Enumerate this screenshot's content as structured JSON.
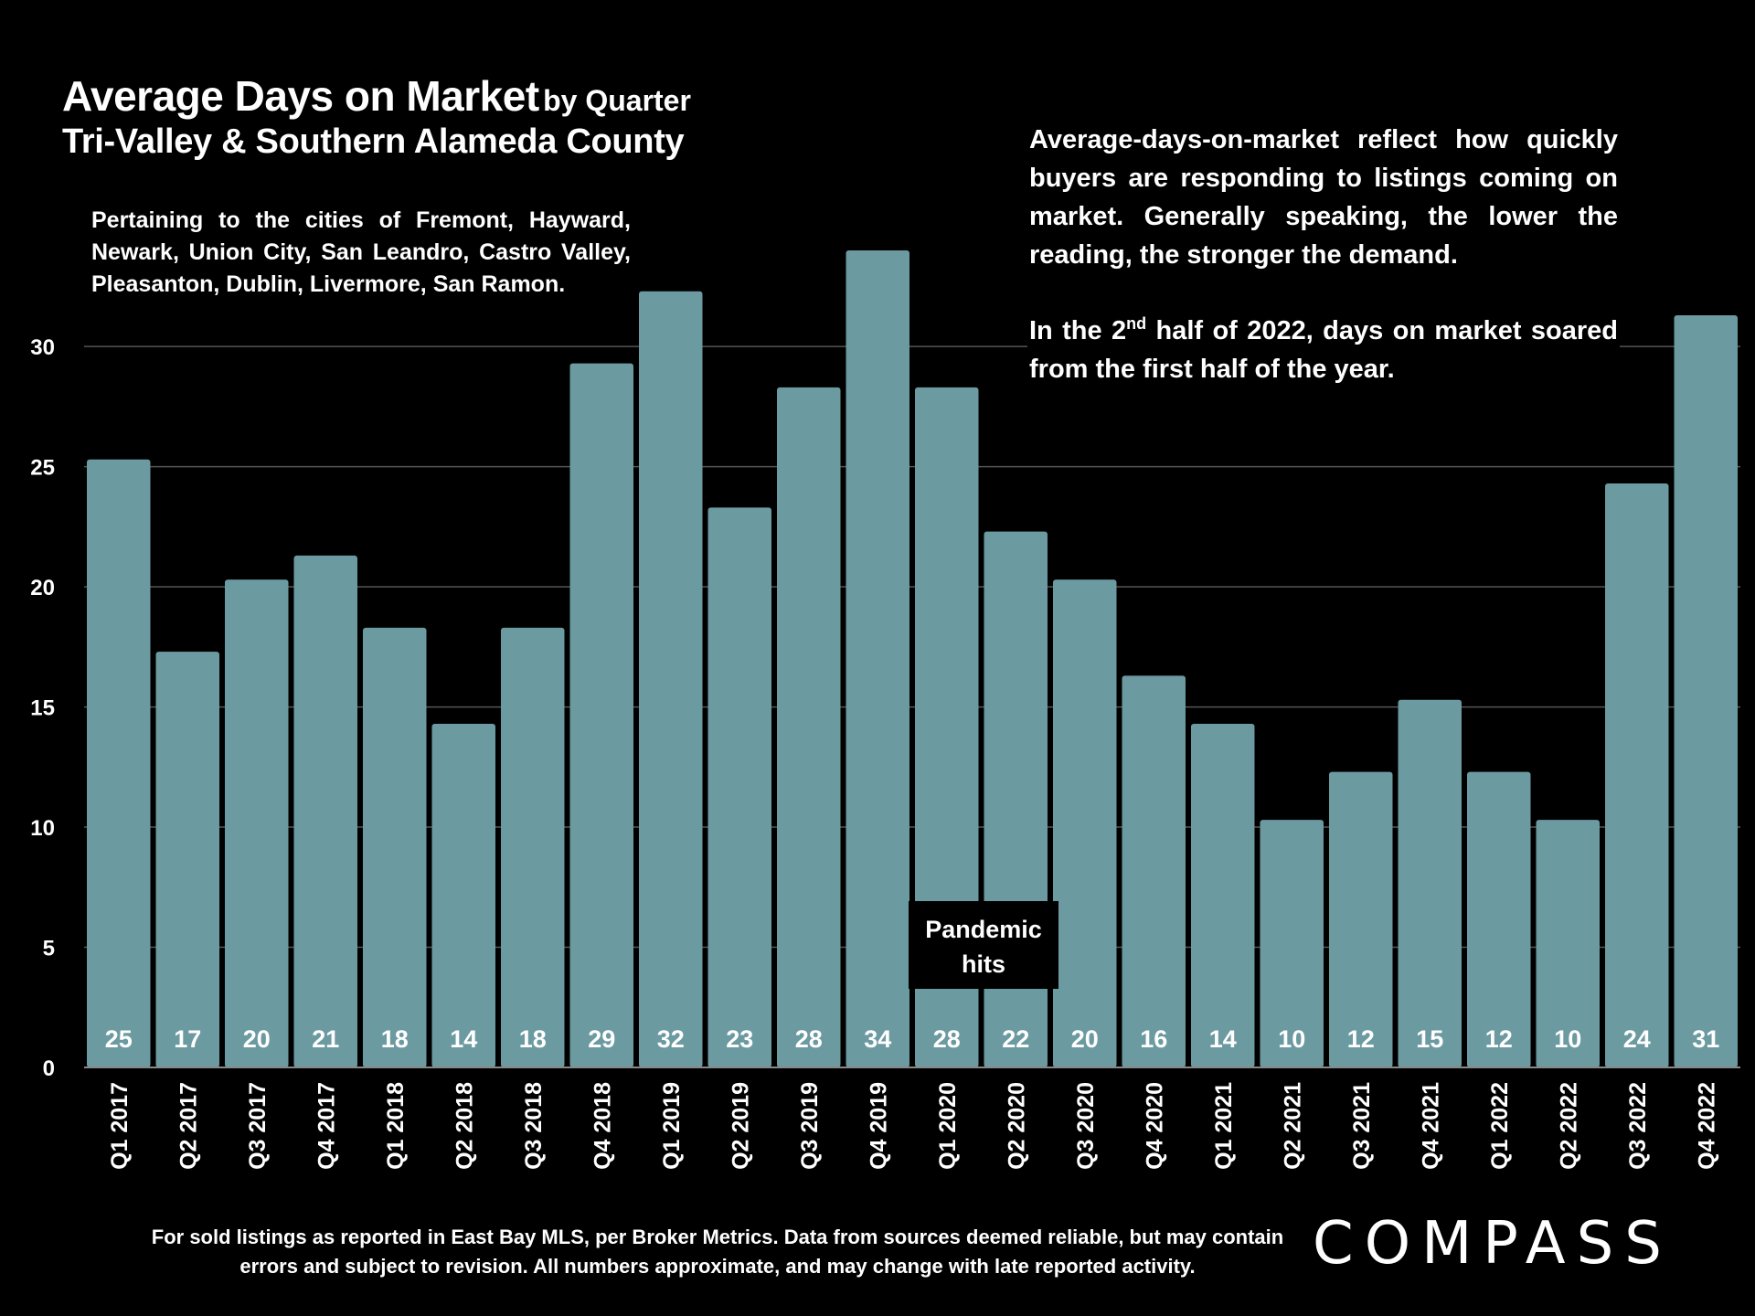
{
  "title": {
    "main": "Average Days on Market",
    "suffix": "by Quarter",
    "line2": "Tri-Valley & Southern Alameda County"
  },
  "cities_note": "Pertaining to the cities of Fremont, Hayward, Newark, Union City, San Leandro, Castro Valley, Pleasanton, Dublin, Livermore, San Ramon.",
  "explanation": {
    "p1": "Average-days-on-market reflect how quickly buyers are responding to listings coming on market. Generally speaking, the lower the reading, the stronger the demand.",
    "p2_before": "In the 2",
    "p2_sup": "nd",
    "p2_after": " half of 2022, days on market soared from the first half of the year."
  },
  "annotation": {
    "pandemic_line1": "Pandemic",
    "pandemic_line2": "hits"
  },
  "footnote": "For sold listings as reported in East Bay MLS, per Broker Metrics. Data from sources deemed reliable, but may contain errors and subject to revision. All numbers approximate, and may change with late reported activity.",
  "logo_text": "COMPASS",
  "colors": {
    "background": "#000000",
    "bar": "#6c9aa1",
    "text": "#ffffff",
    "grid": "#555555"
  },
  "chart_data": {
    "type": "bar",
    "title": "Average Days on Market by Quarter",
    "xlabel": "",
    "ylabel": "",
    "ylim": [
      0,
      34
    ],
    "yticks": [
      0,
      5,
      10,
      15,
      20,
      25,
      30
    ],
    "grid": true,
    "categories": [
      "Q1 2017",
      "Q2 2017",
      "Q3 2017",
      "Q4 2017",
      "Q1 2018",
      "Q2 2018",
      "Q3 2018",
      "Q4 2018",
      "Q1 2019",
      "Q2 2019",
      "Q3 2019",
      "Q4 2019",
      "Q1 2020",
      "Q2 2020",
      "Q3 2020",
      "Q4 2020",
      "Q1 2021",
      "Q2 2021",
      "Q3 2021",
      "Q4 2021",
      "Q1 2022",
      "Q2 2022",
      "Q3 2022",
      "Q4 2022"
    ],
    "values": [
      25.3,
      17.3,
      20.3,
      21.3,
      18.3,
      14.3,
      18.3,
      29.3,
      32.3,
      23.3,
      28.3,
      34,
      28.3,
      22.3,
      20.3,
      16.3,
      14.3,
      10.3,
      12.3,
      15.3,
      12.3,
      10.3,
      24.3,
      31.3
    ],
    "labels": [
      "25",
      "17",
      "20",
      "21",
      "18",
      "14",
      "18",
      "29",
      "32",
      "23",
      "28",
      "34",
      "28",
      "22",
      "20",
      "16",
      "14",
      "10",
      "12",
      "15",
      "12",
      "10",
      "24",
      "31"
    ]
  }
}
